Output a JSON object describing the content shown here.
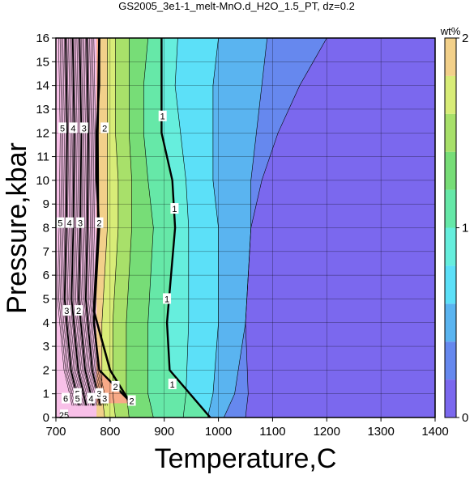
{
  "chart_data": {
    "type": "heatmap",
    "title": "GS2005_3e1-1_melt-MnO.d_H2O_1.5_PT, dz=0.2",
    "xlabel": "Temperature,C",
    "ylabel": "Pressure,kbar",
    "xlim": [
      700,
      1400
    ],
    "ylim": [
      0,
      16
    ],
    "xticks": [
      700,
      800,
      900,
      1000,
      1100,
      1200,
      1300,
      1400
    ],
    "yticks": [
      0,
      1,
      2,
      3,
      4,
      5,
      6,
      7,
      8,
      9,
      10,
      11,
      12,
      13,
      14,
      15,
      16
    ],
    "grid": true,
    "colorbar": {
      "label": "wt%",
      "range": [
        0,
        2
      ],
      "step": 0.2,
      "ticks": [
        0,
        1,
        2
      ],
      "colors": [
        "#7b68ee",
        "#6688ee",
        "#5ab4f0",
        "#5ce0f8",
        "#66eedd",
        "#66e8a8",
        "#77dd77",
        "#a8e06a",
        "#d8ec78",
        "#f2d08a",
        "#f8aa88",
        "#f49a9a",
        "#f8b4d4",
        "#f8c0e8"
      ]
    },
    "contours": [
      {
        "level": 0.2,
        "T": [
          1200,
          1150,
          1110,
          1080,
          1060,
          1050,
          1055,
          1050
        ],
        "P": [
          16,
          14,
          12,
          10,
          8,
          4,
          1,
          0
        ]
      },
      {
        "level": 0.4,
        "T": [
          1090,
          1080,
          1070,
          1060,
          1060,
          1050,
          1030,
          1010
        ],
        "P": [
          16,
          14,
          12,
          10,
          8,
          4,
          1,
          0
        ]
      },
      {
        "level": 0.6,
        "T": [
          1000,
          990,
          990,
          990,
          1000,
          1000,
          990,
          980
        ],
        "P": [
          16,
          14,
          12,
          10,
          8,
          4,
          1,
          0
        ]
      },
      {
        "level": 0.8,
        "T": [
          925,
          920,
          930,
          940,
          945,
          945,
          940,
          935
        ],
        "P": [
          16,
          14,
          12,
          10,
          8,
          4,
          1,
          0
        ]
      },
      {
        "level": 1.0,
        "T": [
          895,
          895,
          895,
          915,
          920,
          905,
          910,
          985
        ],
        "P": [
          16,
          14,
          12,
          10,
          8,
          4,
          2,
          0
        ]
      },
      {
        "level": 1.2,
        "T": [
          870,
          862,
          862,
          870,
          880,
          870,
          870,
          880
        ],
        "P": [
          16,
          14,
          12,
          10,
          8,
          4,
          1,
          0
        ]
      },
      {
        "level": 1.4,
        "T": [
          835,
          835,
          835,
          840,
          840,
          830,
          830,
          835
        ],
        "P": [
          16,
          14,
          12,
          10,
          8,
          4,
          1,
          0
        ]
      },
      {
        "level": 1.6,
        "T": [
          810,
          810,
          810,
          815,
          815,
          805,
          805,
          810
        ],
        "P": [
          16,
          14,
          12,
          10,
          8,
          4,
          1,
          0
        ]
      },
      {
        "level": 1.8,
        "T": [
          795,
          795,
          795,
          795,
          795,
          785,
          785,
          790
        ],
        "P": [
          16,
          14,
          12,
          10,
          8,
          4,
          1,
          0
        ]
      },
      {
        "level": 2.0,
        "T": [
          780,
          780,
          775,
          775,
          780,
          770,
          780,
          840
        ],
        "P": [
          16,
          14,
          12,
          10,
          8,
          4,
          2,
          0.6
        ]
      }
    ],
    "contour_labels": [
      {
        "text": "1",
        "T": 897,
        "P": 12.7
      },
      {
        "text": "1",
        "T": 919,
        "P": 8.8
      },
      {
        "text": "1",
        "T": 905,
        "P": 5.0
      },
      {
        "text": "1",
        "T": 915,
        "P": 1.4
      },
      {
        "text": "2",
        "T": 790,
        "P": 12.2
      },
      {
        "text": "2",
        "T": 780,
        "P": 8.2
      },
      {
        "text": "2",
        "T": 742,
        "P": 4.5
      },
      {
        "text": "2",
        "T": 810,
        "P": 1.3
      },
      {
        "text": "2",
        "T": 840,
        "P": 0.7
      },
      {
        "text": "3",
        "T": 752,
        "P": 12.2
      },
      {
        "text": "3",
        "T": 745,
        "P": 8.2
      },
      {
        "text": "3",
        "T": 720,
        "P": 4.5
      },
      {
        "text": "3",
        "T": 780,
        "P": 1.0
      },
      {
        "text": "3",
        "T": 790,
        "P": 0.8
      },
      {
        "text": "4",
        "T": 732,
        "P": 12.2
      },
      {
        "text": "4",
        "T": 725,
        "P": 8.2
      },
      {
        "text": "4",
        "T": 765,
        "P": 0.8
      },
      {
        "text": "5",
        "T": 712,
        "P": 12.2
      },
      {
        "text": "5",
        "T": 708,
        "P": 8.2
      },
      {
        "text": "5",
        "T": 740,
        "P": 1.0
      },
      {
        "text": "5",
        "T": 740,
        "P": 0.8
      },
      {
        "text": "6",
        "T": 718,
        "P": 0.8
      },
      {
        "text": "25",
        "T": 715,
        "P": 0.1
      }
    ]
  }
}
